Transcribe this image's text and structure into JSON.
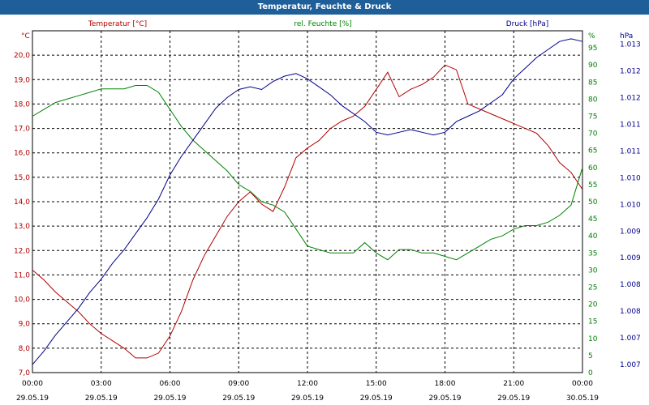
{
  "window": {
    "title": "Temperatur, Feuchte & Druck"
  },
  "chart_data": {
    "type": "line",
    "title": "Temperatur, Feuchte & Druck",
    "x": [
      "00:00",
      "00:30",
      "01:00",
      "01:30",
      "02:00",
      "02:30",
      "03:00",
      "03:30",
      "04:00",
      "04:30",
      "05:00",
      "05:30",
      "06:00",
      "06:30",
      "07:00",
      "07:30",
      "08:00",
      "08:30",
      "09:00",
      "09:30",
      "10:00",
      "10:30",
      "11:00",
      "11:30",
      "12:00",
      "12:30",
      "13:00",
      "13:30",
      "14:00",
      "14:30",
      "15:00",
      "15:30",
      "16:00",
      "16:30",
      "17:00",
      "17:30",
      "18:00",
      "18:30",
      "19:00",
      "19:30",
      "20:00",
      "20:30",
      "21:00",
      "21:30",
      "22:00",
      "22:30",
      "23:00",
      "23:30",
      "00:00"
    ],
    "x_ticks": [
      {
        "time": "00:00",
        "date": "29.05.19"
      },
      {
        "time": "03:00",
        "date": "29.05.19"
      },
      {
        "time": "06:00",
        "date": "29.05.19"
      },
      {
        "time": "09:00",
        "date": "29.05.19"
      },
      {
        "time": "12:00",
        "date": "29.05.19"
      },
      {
        "time": "15:00",
        "date": "29.05.19"
      },
      {
        "time": "18:00",
        "date": "29.05.19"
      },
      {
        "time": "21:00",
        "date": "29.05.19"
      },
      {
        "time": "00:00",
        "date": "30.05.19"
      }
    ],
    "series": [
      {
        "name": "Temperatur [°C]",
        "color": "#b00000",
        "axis": "left",
        "values": [
          11.2,
          10.8,
          10.3,
          9.9,
          9.5,
          9.0,
          8.6,
          8.3,
          8.0,
          7.6,
          7.6,
          7.8,
          8.5,
          9.5,
          10.8,
          11.8,
          12.6,
          13.4,
          14.0,
          14.4,
          13.9,
          13.6,
          14.6,
          15.8,
          16.2,
          16.5,
          17.0,
          17.3,
          17.5,
          17.9,
          18.6,
          19.3,
          18.3,
          18.6,
          18.8,
          19.1,
          19.6,
          19.4,
          18.0,
          17.8,
          17.6,
          17.4,
          17.2,
          17.0,
          16.8,
          16.3,
          15.6,
          15.2,
          14.5
        ]
      },
      {
        "name": "rel. Feuchte [%]",
        "color": "#008000",
        "axis": "right1",
        "values": [
          75,
          77,
          79,
          80,
          81,
          82,
          83,
          83,
          83,
          84,
          84,
          82,
          77,
          72,
          68,
          65,
          62,
          59,
          55,
          53,
          50,
          49,
          47,
          42,
          37,
          36,
          35,
          35,
          35,
          38,
          35,
          33,
          36,
          36,
          35,
          35,
          34,
          33,
          35,
          37,
          39,
          40,
          42,
          43,
          43,
          44,
          46,
          49,
          60
        ]
      },
      {
        "name": "Druck [hPa]",
        "color": "#00008b",
        "axis": "right2",
        "values": [
          1006.95,
          1007.2,
          1007.5,
          1007.75,
          1008.0,
          1008.3,
          1008.55,
          1008.85,
          1009.1,
          1009.4,
          1009.7,
          1010.05,
          1010.5,
          1010.85,
          1011.15,
          1011.45,
          1011.75,
          1011.95,
          1012.1,
          1012.15,
          1012.1,
          1012.25,
          1012.35,
          1012.4,
          1012.3,
          1012.15,
          1012.0,
          1011.8,
          1011.65,
          1011.5,
          1011.3,
          1011.25,
          1011.3,
          1011.35,
          1011.3,
          1011.25,
          1011.3,
          1011.5,
          1011.6,
          1011.7,
          1011.85,
          1012.0,
          1012.3,
          1012.5,
          1012.7,
          1012.85,
          1013.0,
          1013.05,
          1013.0
        ]
      }
    ],
    "axes": {
      "left": {
        "label": "°C",
        "range": [
          7.0,
          21.0
        ],
        "ticks": [
          "7,0",
          "8,0",
          "9,0",
          "10,0",
          "11,0",
          "12,0",
          "13,0",
          "14,0",
          "15,0",
          "16,0",
          "17,0",
          "18,0",
          "19,0",
          "20,0"
        ]
      },
      "right1": {
        "label": "%",
        "range": [
          0,
          100
        ],
        "ticks": [
          "0",
          "5",
          "10",
          "15",
          "20",
          "25",
          "30",
          "35",
          "40",
          "45",
          "50",
          "55",
          "60",
          "65",
          "70",
          "75",
          "80",
          "85",
          "90",
          "95"
        ]
      },
      "right2": {
        "label": "hPa",
        "range": [
          1006.8,
          1013.2
        ],
        "ticks": [
          "1.007",
          "1.007",
          "1.008",
          "1.008",
          "1.009",
          "1.009",
          "1.010",
          "1.010",
          "1.011",
          "1.011",
          "1.012",
          "1.012",
          "1.013"
        ]
      }
    },
    "legend": [
      "Temperatur [°C]",
      "rel. Feuchte [%]",
      "Druck [hPa]"
    ],
    "grid": true
  }
}
